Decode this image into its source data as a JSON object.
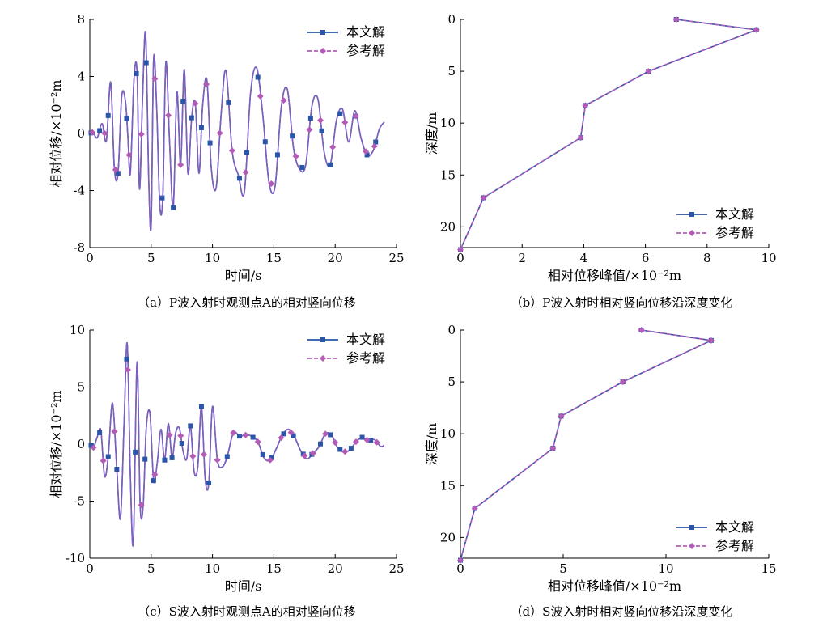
{
  "legend": {
    "primary": "本文解",
    "reference": "参考解"
  },
  "colors": {
    "primary": "#2a55a8",
    "reference": "#b45bb8",
    "overlay": "#7d62c0"
  },
  "chart_data": [
    {
      "id": "a",
      "type": "line",
      "caption": "（a）P波入射时观测点A的相对竖向位移",
      "xlabel": "时间/s",
      "ylabel": "相对位移/×10⁻²m",
      "xlim": [
        0,
        25
      ],
      "ylim": [
        -8,
        8
      ],
      "xticks": [
        0,
        5,
        10,
        15,
        20,
        25
      ],
      "yticks": [
        -8,
        -4,
        0,
        4,
        8
      ],
      "legend_position": "top-right",
      "series": [
        {
          "name": "本文解",
          "marker": "square",
          "style": "solid",
          "x": [
            0,
            0.25,
            0.6,
            1,
            1.35,
            1.7,
            2,
            2.3,
            2.6,
            2.9,
            3.1,
            3.3,
            3.6,
            3.85,
            4.05,
            4.3,
            4.55,
            4.8,
            5,
            5.2,
            5.45,
            5.7,
            5.95,
            6.2,
            6.5,
            6.8,
            7.1,
            7.4,
            7.7,
            8,
            8.3,
            8.6,
            8.9,
            9.2,
            9.55,
            9.9,
            10.3,
            10.7,
            11.1,
            11.6,
            12.1,
            12.6,
            13.1,
            13.6,
            14.1,
            14.6,
            15.1,
            15.6,
            16.1,
            16.6,
            17.1,
            17.6,
            18.1,
            18.6,
            19.1,
            19.6,
            20.1,
            20.6,
            21.1,
            21.6,
            22.1,
            22.6,
            23.1,
            23.6,
            24
          ],
          "y": [
            0,
            0.1,
            -0.3,
            0.7,
            -0.5,
            3.6,
            -2.4,
            -2.8,
            2.6,
            2.3,
            -0.2,
            -2.8,
            3.8,
            4.3,
            -3.9,
            2.5,
            7,
            -3.2,
            -6.4,
            5.2,
            1.8,
            -5,
            -4.4,
            5,
            -0.6,
            -5.2,
            2.9,
            -2.2,
            4.5,
            -2.8,
            1.1,
            2.1,
            -2.8,
            2,
            3.7,
            -2.4,
            -3.8,
            1.3,
            4.4,
            -1.2,
            -2.9,
            -4.1,
            2.8,
            4.6,
            1.3,
            -3.4,
            -3.7,
            1.8,
            3.1,
            -1,
            -2.5,
            -2.2,
            1.9,
            2.4,
            -1.3,
            -2.2,
            0.9,
            1.7,
            -0.6,
            1.6,
            -0.3,
            -1.5,
            -1.2,
            0.3,
            0.8
          ]
        },
        {
          "name": "参考解",
          "marker": "diamond",
          "style": "dashed",
          "x": [
            0,
            0.25,
            0.6,
            1,
            1.35,
            1.7,
            2,
            2.3,
            2.6,
            2.9,
            3.1,
            3.3,
            3.6,
            3.85,
            4.05,
            4.3,
            4.55,
            4.8,
            5,
            5.2,
            5.45,
            5.7,
            5.95,
            6.2,
            6.5,
            6.8,
            7.1,
            7.4,
            7.7,
            8,
            8.3,
            8.6,
            8.9,
            9.2,
            9.55,
            9.9,
            10.3,
            10.7,
            11.1,
            11.6,
            12.1,
            12.6,
            13.1,
            13.6,
            14.1,
            14.6,
            15.1,
            15.6,
            16.1,
            16.6,
            17.1,
            17.6,
            18.1,
            18.6,
            19.1,
            19.6,
            20.1,
            20.6,
            21.1,
            21.6,
            22.1,
            22.6,
            23.1,
            23.6,
            24
          ],
          "y": [
            0,
            0.1,
            -0.3,
            0.7,
            -0.5,
            3.6,
            -2.4,
            -2.8,
            2.6,
            2.3,
            -0.2,
            -2.8,
            3.8,
            4.3,
            -3.9,
            2.5,
            7,
            -3.2,
            -6.4,
            5.2,
            1.8,
            -5,
            -4.4,
            5,
            -0.6,
            -5.2,
            2.9,
            -2.2,
            4.5,
            -2.8,
            1.1,
            2.1,
            -2.8,
            2,
            3.7,
            -2.4,
            -3.8,
            1.3,
            4.4,
            -1.2,
            -2.9,
            -4.1,
            2.8,
            4.6,
            1.3,
            -3.4,
            -3.7,
            1.8,
            3.1,
            -1,
            -2.5,
            -2.2,
            1.9,
            2.4,
            -1.3,
            -2.2,
            0.9,
            1.7,
            -0.6,
            1.6,
            -0.3,
            -1.5,
            -1.2,
            0.3,
            0.8
          ]
        }
      ],
      "markers": {
        "primary_x": [
          0.1,
          0.8,
          1.5,
          2.3,
          3.0,
          3.8,
          4.6,
          5.9,
          6.8,
          7.6,
          8.3,
          9.1,
          9.8,
          11.3,
          12.2,
          12.8,
          13.7,
          14.3,
          15.3,
          16.5,
          17.3,
          18.0,
          18.9,
          19.6,
          20.4,
          21.7,
          22.6,
          23.3
        ],
        "reference_x": [
          0.2,
          1.2,
          2.1,
          3.2,
          4.2,
          5.3,
          6.4,
          7.4,
          8.6,
          9.5,
          10.6,
          11.6,
          12.7,
          13.9,
          14.8,
          15.8,
          16.8,
          17.9,
          18.8,
          19.8,
          20.8,
          21.7,
          22.5,
          23.2
        ]
      }
    },
    {
      "id": "b",
      "type": "line",
      "caption": "（b）P波入射时相对竖向位移沿深度变化",
      "xlabel": "相对位移峰值/×10⁻²m",
      "ylabel": "深度/m",
      "xlim": [
        0,
        10
      ],
      "ylim": [
        0,
        22
      ],
      "y_inverted": true,
      "xticks": [
        0,
        2,
        4,
        6,
        8,
        10
      ],
      "yticks": [
        0,
        5,
        10,
        15,
        20
      ],
      "legend_position": "bottom-right",
      "series": [
        {
          "name": "本文解",
          "marker": "square",
          "style": "solid",
          "x": [
            7.0,
            9.6,
            6.1,
            4.05,
            3.9,
            0.75,
            0
          ],
          "y": [
            0,
            1,
            5,
            8.3,
            11.4,
            17.2,
            22.2
          ]
        },
        {
          "name": "参考解",
          "marker": "diamond",
          "style": "dashed",
          "x": [
            7.0,
            9.6,
            6.1,
            4.05,
            3.9,
            0.75,
            0
          ],
          "y": [
            0,
            1,
            5,
            8.3,
            11.4,
            17.2,
            22.2
          ]
        }
      ]
    },
    {
      "id": "c",
      "type": "line",
      "caption": "（c）S波入射时观测点A的相对竖向位移",
      "xlabel": "时间/s",
      "ylabel": "相对位移/×10⁻²m",
      "xlim": [
        0,
        25
      ],
      "ylim": [
        -10,
        10
      ],
      "xticks": [
        0,
        5,
        10,
        15,
        20,
        25
      ],
      "yticks": [
        -10,
        -5,
        0,
        5,
        10
      ],
      "legend_position": "top-right",
      "series": [
        {
          "name": "本文解",
          "marker": "square",
          "style": "solid",
          "x": [
            0,
            0.3,
            0.6,
            0.9,
            1.2,
            1.5,
            1.85,
            2.2,
            2.5,
            2.8,
            3.05,
            3.3,
            3.55,
            3.85,
            4.1,
            4.35,
            4.6,
            4.9,
            5.2,
            5.5,
            5.8,
            6.1,
            6.4,
            6.7,
            7,
            7.3,
            7.6,
            7.9,
            8.2,
            8.5,
            8.8,
            9.1,
            9.4,
            9.7,
            10,
            10.4,
            10.8,
            11.2,
            11.7,
            12.2,
            12.7,
            13.2,
            13.7,
            14.2,
            14.7,
            15.2,
            15.7,
            16.2,
            16.7,
            17.2,
            17.7,
            18.2,
            18.7,
            19.2,
            19.7,
            20.2,
            20.7,
            21.2,
            21.7,
            22.2,
            22.7,
            23.2,
            23.7,
            24
          ],
          "y": [
            0,
            -0.3,
            0.6,
            1.2,
            -2.8,
            -1.1,
            3.6,
            -2.2,
            -6.5,
            2.1,
            8.8,
            -2.6,
            -8.6,
            7.2,
            -5.3,
            -5.4,
            1.4,
            2.7,
            -3.2,
            -1.6,
            1.3,
            -1.4,
            1.8,
            -1.2,
            1,
            1.4,
            -0.6,
            -1.3,
            1.6,
            -2.4,
            -2,
            3.3,
            -3,
            -3.4,
            3.3,
            -1.4,
            -2,
            -1.1,
            1,
            0.7,
            0.8,
            0.7,
            0.2,
            -1.2,
            -1.4,
            -0.4,
            0.8,
            1.3,
            0.6,
            -0.6,
            -1.3,
            -0.8,
            -0.2,
            0.9,
            0.8,
            -0.3,
            -0.7,
            -0.5,
            0.2,
            0.6,
            0.3,
            0.4,
            -0.2,
            -0.1
          ]
        },
        {
          "name": "参考解",
          "marker": "diamond",
          "style": "dashed",
          "x": [
            0,
            0.3,
            0.6,
            0.9,
            1.2,
            1.5,
            1.85,
            2.2,
            2.5,
            2.8,
            3.05,
            3.3,
            3.55,
            3.85,
            4.1,
            4.35,
            4.6,
            4.9,
            5.2,
            5.5,
            5.8,
            6.1,
            6.4,
            6.7,
            7,
            7.3,
            7.6,
            7.9,
            8.2,
            8.5,
            8.8,
            9.1,
            9.4,
            9.7,
            10,
            10.4,
            10.8,
            11.2,
            11.7,
            12.2,
            12.7,
            13.2,
            13.7,
            14.2,
            14.7,
            15.2,
            15.7,
            16.2,
            16.7,
            17.2,
            17.7,
            18.2,
            18.7,
            19.2,
            19.7,
            20.2,
            20.7,
            21.2,
            21.7,
            22.2,
            22.7,
            23.2,
            23.7,
            24
          ],
          "y": [
            0,
            -0.3,
            0.6,
            1.2,
            -2.8,
            -1.1,
            3.6,
            -2.2,
            -6.5,
            2.1,
            8.8,
            -2.6,
            -8.6,
            7.2,
            -5.3,
            -5.4,
            1.4,
            2.7,
            -3.2,
            -1.6,
            1.3,
            -1.4,
            1.8,
            -1.2,
            1,
            1.4,
            -0.6,
            -1.3,
            1.6,
            -2.4,
            -2,
            3.3,
            -3,
            -3.4,
            3.3,
            -1.4,
            -2,
            -1.1,
            1,
            0.7,
            0.8,
            0.7,
            0.2,
            -1.2,
            -1.4,
            -0.4,
            0.8,
            1.3,
            0.6,
            -0.6,
            -1.3,
            -0.8,
            -0.2,
            0.9,
            0.8,
            -0.3,
            -0.7,
            -0.5,
            0.2,
            0.6,
            0.3,
            0.4,
            -0.2,
            -0.1
          ]
        }
      ],
      "markers": {
        "primary_x": [
          0.1,
          0.8,
          1.5,
          2.2,
          3.0,
          3.7,
          4.5,
          5.2,
          6.1,
          6.7,
          7.5,
          8.2,
          9.1,
          9.7,
          11.2,
          12.2,
          13.3,
          14.1,
          14.8,
          15.8,
          16.6,
          17.4,
          18.1,
          18.8,
          19.6,
          20.4,
          21.3,
          22.2,
          22.9
        ],
        "reference_x": [
          0.3,
          1.1,
          2.0,
          3.1,
          4.2,
          5.3,
          6.5,
          7.4,
          8.4,
          9.3,
          10.4,
          11.7,
          12.7,
          13.7,
          14.7,
          15.6,
          16.4,
          17.5,
          18.2,
          19.2,
          20.0,
          20.8,
          21.7,
          22.6,
          23.4
        ]
      }
    },
    {
      "id": "d",
      "type": "line",
      "caption": "（d）S波入射时相对竖向位移沿深度变化",
      "xlabel": "相对位移峰值/×10⁻²m",
      "ylabel": "深度/m",
      "xlim": [
        0,
        15
      ],
      "ylim": [
        0,
        22
      ],
      "y_inverted": true,
      "xticks": [
        0,
        5,
        10,
        15
      ],
      "yticks": [
        0,
        5,
        10,
        15,
        20
      ],
      "legend_position": "bottom-right",
      "series": [
        {
          "name": "本文解",
          "marker": "square",
          "style": "solid",
          "x": [
            8.8,
            12.2,
            7.9,
            4.9,
            4.5,
            0.7,
            0
          ],
          "y": [
            0,
            1,
            5,
            8.3,
            11.4,
            17.2,
            22.2
          ]
        },
        {
          "name": "参考解",
          "marker": "diamond",
          "style": "dashed",
          "x": [
            8.8,
            12.2,
            7.9,
            4.9,
            4.5,
            0.7,
            0
          ],
          "y": [
            0,
            1,
            5,
            8.3,
            11.4,
            17.2,
            22.2
          ]
        }
      ]
    }
  ]
}
